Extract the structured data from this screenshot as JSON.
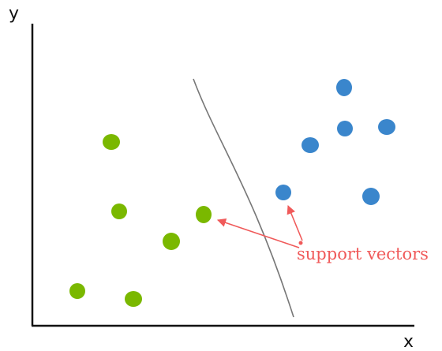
{
  "axes": {
    "x_label": "x",
    "y_label": "y"
  },
  "annotation": {
    "text": "support vectors"
  },
  "colors": {
    "class_a": "#7ab800",
    "class_b": "#3a86cc",
    "annotation": "#f05a5a",
    "boundary": "#777777",
    "axis": "#111111"
  },
  "classes": [
    {
      "id": "green-class",
      "color_key": "class_a"
    },
    {
      "id": "blue-class",
      "color_key": "class_b"
    }
  ]
}
